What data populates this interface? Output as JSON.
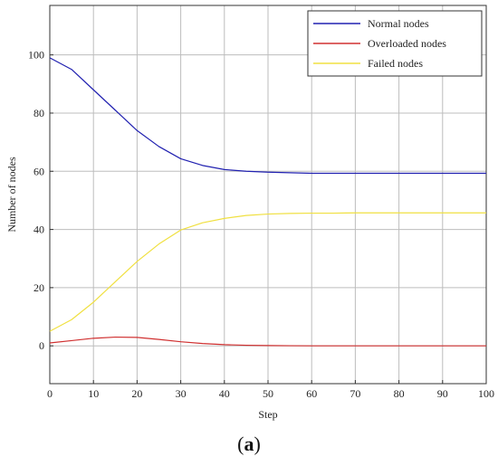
{
  "chart_data": {
    "type": "line",
    "xlabel": "Step",
    "ylabel": "Number of nodes",
    "xlim": [
      0,
      100
    ],
    "ylim": [
      -13,
      117
    ],
    "xticks": [
      0,
      10,
      20,
      30,
      40,
      50,
      60,
      70,
      80,
      90,
      100
    ],
    "yticks": [
      0,
      20,
      40,
      60,
      80,
      100
    ],
    "grid": true,
    "legend_position": "top-right",
    "x": [
      0,
      5,
      10,
      15,
      20,
      25,
      30,
      35,
      40,
      45,
      50,
      55,
      60,
      65,
      70,
      75,
      80,
      85,
      90,
      95,
      100
    ],
    "series": [
      {
        "name": "Normal nodes",
        "color": "#2020b0",
        "values": [
          99,
          95,
          88,
          81,
          74,
          68.5,
          64.3,
          62,
          60.6,
          60,
          59.7,
          59.5,
          59.3,
          59.3,
          59.3,
          59.3,
          59.3,
          59.3,
          59.3,
          59.3,
          59.3
        ]
      },
      {
        "name": "Overloaded nodes",
        "color": "#d03030",
        "values": [
          1,
          1.8,
          2.6,
          3,
          2.9,
          2.2,
          1.4,
          0.8,
          0.4,
          0.2,
          0.1,
          0.05,
          0,
          0,
          0,
          0,
          0,
          0,
          0,
          0,
          0
        ]
      },
      {
        "name": "Failed nodes",
        "color": "#f0e040",
        "values": [
          5,
          9,
          15,
          22,
          29,
          35,
          39.8,
          42.3,
          43.8,
          44.8,
          45.3,
          45.5,
          45.6,
          45.6,
          45.7,
          45.7,
          45.7,
          45.7,
          45.7,
          45.7,
          45.7
        ]
      }
    ]
  },
  "panel": {
    "open": "(",
    "letter": "a",
    "close": ")"
  }
}
